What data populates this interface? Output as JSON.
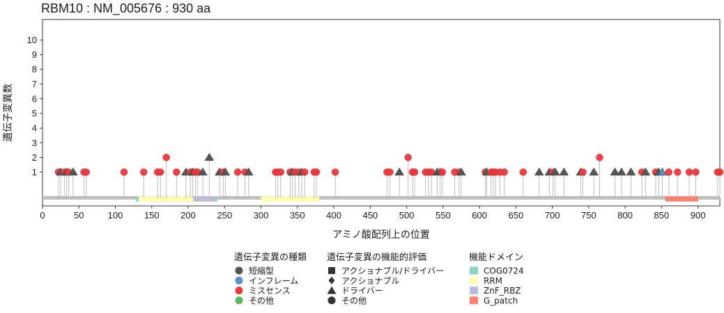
{
  "chart_data": {
    "type": "lollipop",
    "title": "RBM10 : NM_005676 : 930 aa",
    "xlabel": "アミノ酸配列上の位置",
    "ylabel": "遺伝子変異数",
    "protein_length": 930,
    "xlim": [
      0,
      930
    ],
    "ylim": [
      -1.3,
      11.4
    ],
    "x_ticks": [
      0,
      50,
      100,
      150,
      200,
      250,
      300,
      350,
      400,
      450,
      500,
      550,
      600,
      650,
      700,
      750,
      800,
      850,
      900
    ],
    "y_ticks": [
      1,
      2,
      3,
      4,
      5,
      6,
      7,
      8,
      9,
      10
    ],
    "domains": [
      {
        "name": "COG0724",
        "start": 128,
        "end": 240,
        "color": "#8dd3c7"
      },
      {
        "name": "RRM",
        "start": 132,
        "end": 207,
        "color": "#ffffb3"
      },
      {
        "name": "RRM",
        "start": 300,
        "end": 380,
        "color": "#ffffb3"
      },
      {
        "name": "ZnF_RBZ",
        "start": 208,
        "end": 238,
        "color": "#bebada"
      },
      {
        "name": "G_patch",
        "start": 855,
        "end": 900,
        "color": "#fb8072"
      }
    ],
    "mutations": [
      {
        "pos": 22,
        "count": 1,
        "type": "missense",
        "shape": "circle"
      },
      {
        "pos": 25,
        "count": 1,
        "type": "truncating",
        "shape": "triangle"
      },
      {
        "pos": 30,
        "count": 1,
        "type": "missense",
        "shape": "circle"
      },
      {
        "pos": 33,
        "count": 1,
        "type": "truncating",
        "shape": "triangle"
      },
      {
        "pos": 36,
        "count": 1,
        "type": "missense",
        "shape": "circle"
      },
      {
        "pos": 42,
        "count": 1,
        "type": "truncating",
        "shape": "triangle"
      },
      {
        "pos": 57,
        "count": 1,
        "type": "missense",
        "shape": "circle"
      },
      {
        "pos": 60,
        "count": 1,
        "type": "missense",
        "shape": "circle"
      },
      {
        "pos": 112,
        "count": 1,
        "type": "missense",
        "shape": "circle"
      },
      {
        "pos": 139,
        "count": 1,
        "type": "missense",
        "shape": "circle"
      },
      {
        "pos": 158,
        "count": 1,
        "type": "missense",
        "shape": "circle"
      },
      {
        "pos": 162,
        "count": 1,
        "type": "missense",
        "shape": "circle"
      },
      {
        "pos": 170,
        "count": 2,
        "type": "missense",
        "shape": "circle"
      },
      {
        "pos": 184,
        "count": 1,
        "type": "missense",
        "shape": "circle"
      },
      {
        "pos": 197,
        "count": 1,
        "type": "truncating",
        "shape": "triangle"
      },
      {
        "pos": 203,
        "count": 1,
        "type": "missense",
        "shape": "circle"
      },
      {
        "pos": 206,
        "count": 1,
        "type": "truncating",
        "shape": "triangle"
      },
      {
        "pos": 210,
        "count": 1,
        "type": "missense",
        "shape": "circle"
      },
      {
        "pos": 213,
        "count": 1,
        "type": "missense",
        "shape": "circle"
      },
      {
        "pos": 220,
        "count": 1,
        "type": "truncating",
        "shape": "triangle"
      },
      {
        "pos": 229,
        "count": 2,
        "type": "truncating",
        "shape": "triangle"
      },
      {
        "pos": 243,
        "count": 1,
        "type": "truncating",
        "shape": "triangle"
      },
      {
        "pos": 248,
        "count": 1,
        "type": "missense",
        "shape": "circle"
      },
      {
        "pos": 251,
        "count": 1,
        "type": "truncating",
        "shape": "triangle"
      },
      {
        "pos": 268,
        "count": 1,
        "type": "missense",
        "shape": "circle"
      },
      {
        "pos": 278,
        "count": 1,
        "type": "missense",
        "shape": "circle"
      },
      {
        "pos": 283,
        "count": 1,
        "type": "truncating",
        "shape": "triangle"
      },
      {
        "pos": 320,
        "count": 1,
        "type": "missense",
        "shape": "circle"
      },
      {
        "pos": 323,
        "count": 1,
        "type": "missense",
        "shape": "circle"
      },
      {
        "pos": 327,
        "count": 1,
        "type": "missense",
        "shape": "circle"
      },
      {
        "pos": 340,
        "count": 1,
        "type": "missense",
        "shape": "circle"
      },
      {
        "pos": 343,
        "count": 1,
        "type": "truncating",
        "shape": "triangle"
      },
      {
        "pos": 347,
        "count": 1,
        "type": "missense",
        "shape": "circle"
      },
      {
        "pos": 352,
        "count": 1,
        "type": "missense",
        "shape": "circle"
      },
      {
        "pos": 356,
        "count": 1,
        "type": "truncating",
        "shape": "triangle"
      },
      {
        "pos": 360,
        "count": 1,
        "type": "missense",
        "shape": "circle"
      },
      {
        "pos": 373,
        "count": 1,
        "type": "missense",
        "shape": "circle"
      },
      {
        "pos": 376,
        "count": 1,
        "type": "missense",
        "shape": "circle"
      },
      {
        "pos": 402,
        "count": 1,
        "type": "missense",
        "shape": "circle"
      },
      {
        "pos": 473,
        "count": 1,
        "type": "missense",
        "shape": "circle"
      },
      {
        "pos": 477,
        "count": 1,
        "type": "missense",
        "shape": "circle"
      },
      {
        "pos": 490,
        "count": 1,
        "type": "truncating",
        "shape": "triangle"
      },
      {
        "pos": 502,
        "count": 2,
        "type": "missense",
        "shape": "circle"
      },
      {
        "pos": 508,
        "count": 1,
        "type": "missense",
        "shape": "circle"
      },
      {
        "pos": 511,
        "count": 1,
        "type": "missense",
        "shape": "circle"
      },
      {
        "pos": 526,
        "count": 1,
        "type": "missense",
        "shape": "circle"
      },
      {
        "pos": 530,
        "count": 1,
        "type": "missense",
        "shape": "circle"
      },
      {
        "pos": 534,
        "count": 1,
        "type": "missense",
        "shape": "circle"
      },
      {
        "pos": 542,
        "count": 1,
        "type": "truncating",
        "shape": "triangle"
      },
      {
        "pos": 546,
        "count": 1,
        "type": "truncating",
        "shape": "triangle"
      },
      {
        "pos": 549,
        "count": 1,
        "type": "missense",
        "shape": "circle"
      },
      {
        "pos": 566,
        "count": 1,
        "type": "missense",
        "shape": "circle"
      },
      {
        "pos": 572,
        "count": 1,
        "type": "missense",
        "shape": "circle"
      },
      {
        "pos": 575,
        "count": 1,
        "type": "truncating",
        "shape": "triangle"
      },
      {
        "pos": 608,
        "count": 1,
        "type": "missense",
        "shape": "circle"
      },
      {
        "pos": 610,
        "count": 1,
        "type": "truncating",
        "shape": "triangle"
      },
      {
        "pos": 616,
        "count": 1,
        "type": "missense",
        "shape": "circle"
      },
      {
        "pos": 619,
        "count": 1,
        "type": "missense",
        "shape": "circle"
      },
      {
        "pos": 622,
        "count": 1,
        "type": "missense",
        "shape": "circle"
      },
      {
        "pos": 628,
        "count": 1,
        "type": "missense",
        "shape": "circle"
      },
      {
        "pos": 634,
        "count": 1,
        "type": "missense",
        "shape": "circle"
      },
      {
        "pos": 660,
        "count": 1,
        "type": "missense",
        "shape": "circle"
      },
      {
        "pos": 682,
        "count": 1,
        "type": "truncating",
        "shape": "triangle"
      },
      {
        "pos": 696,
        "count": 1,
        "type": "truncating",
        "shape": "triangle"
      },
      {
        "pos": 701,
        "count": 1,
        "type": "missense",
        "shape": "circle"
      },
      {
        "pos": 704,
        "count": 1,
        "type": "truncating",
        "shape": "triangle"
      },
      {
        "pos": 716,
        "count": 1,
        "type": "truncating",
        "shape": "triangle"
      },
      {
        "pos": 739,
        "count": 1,
        "type": "truncating",
        "shape": "triangle"
      },
      {
        "pos": 742,
        "count": 1,
        "type": "missense",
        "shape": "circle"
      },
      {
        "pos": 757,
        "count": 1,
        "type": "truncating",
        "shape": "triangle"
      },
      {
        "pos": 765,
        "count": 2,
        "type": "missense",
        "shape": "circle"
      },
      {
        "pos": 786,
        "count": 1,
        "type": "truncating",
        "shape": "triangle"
      },
      {
        "pos": 795,
        "count": 1,
        "type": "truncating",
        "shape": "triangle"
      },
      {
        "pos": 808,
        "count": 1,
        "type": "truncating",
        "shape": "triangle"
      },
      {
        "pos": 823,
        "count": 1,
        "type": "missense",
        "shape": "circle"
      },
      {
        "pos": 828,
        "count": 1,
        "type": "truncating",
        "shape": "triangle"
      },
      {
        "pos": 842,
        "count": 1,
        "type": "missense",
        "shape": "circle"
      },
      {
        "pos": 846,
        "count": 1,
        "type": "truncating",
        "shape": "triangle"
      },
      {
        "pos": 851,
        "count": 1,
        "type": "inframe",
        "shape": "triangle"
      },
      {
        "pos": 860,
        "count": 1,
        "type": "missense",
        "shape": "circle"
      },
      {
        "pos": 872,
        "count": 1,
        "type": "missense",
        "shape": "circle"
      },
      {
        "pos": 888,
        "count": 1,
        "type": "missense",
        "shape": "circle"
      },
      {
        "pos": 897,
        "count": 1,
        "type": "missense",
        "shape": "circle"
      },
      {
        "pos": 927,
        "count": 1,
        "type": "missense",
        "shape": "circle"
      },
      {
        "pos": 930,
        "count": 1,
        "type": "missense",
        "shape": "circle"
      }
    ],
    "type_colors": {
      "truncating": "#555555",
      "inframe": "#5b8fc9",
      "missense": "#e8383d",
      "other": "#5cb85c"
    },
    "legend": {
      "placement": "bottom",
      "groups": [
        {
          "title": "遺伝子変異の種類",
          "items": [
            {
              "label": "短縮型",
              "marker": "circle",
              "color": "#555555"
            },
            {
              "label": "インフレーム",
              "marker": "circle",
              "color": "#5b8fc9"
            },
            {
              "label": "ミスセンス",
              "marker": "circle",
              "color": "#e8383d"
            },
            {
              "label": "その他",
              "marker": "circle",
              "color": "#5cb85c"
            }
          ]
        },
        {
          "title": "遺伝子変異の機能的評価",
          "items": [
            {
              "label": "アクショナブル/ドライバー",
              "marker": "square",
              "color": "#333333"
            },
            {
              "label": "アクショナブル",
              "marker": "diamond",
              "color": "#333333"
            },
            {
              "label": "ドライバー",
              "marker": "triangle",
              "color": "#333333"
            },
            {
              "label": "その他",
              "marker": "circle",
              "color": "#333333"
            }
          ]
        },
        {
          "title": "機能ドメイン",
          "items": [
            {
              "label": "COG0724",
              "marker": "rect",
              "color": "#8dd3c7"
            },
            {
              "label": "RRM",
              "marker": "rect",
              "color": "#ffffb3"
            },
            {
              "label": "ZnF_RBZ",
              "marker": "rect",
              "color": "#bebada"
            },
            {
              "label": "G_patch",
              "marker": "rect",
              "color": "#fb8072"
            }
          ]
        }
      ]
    }
  }
}
